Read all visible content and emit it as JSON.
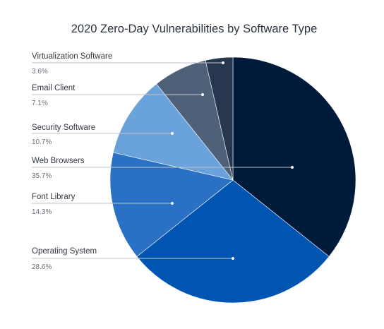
{
  "chart_data": {
    "type": "pie",
    "title": "2020 Zero-Day Vulnerabilities by Software Type",
    "start_angle_deg": 0,
    "direction": "clockwise",
    "slices": [
      {
        "label": "Web Browsers",
        "value": 35.7,
        "value_label": "35.7%",
        "color": "#001a3a"
      },
      {
        "label": "Operating System",
        "value": 28.6,
        "value_label": "28.6%",
        "color": "#0055b3"
      },
      {
        "label": "Font Library",
        "value": 14.3,
        "value_label": "14.3%",
        "color": "#2a71c5"
      },
      {
        "label": "Security Software",
        "value": 10.7,
        "value_label": "10.7%",
        "color": "#6aa2db"
      },
      {
        "label": "Email Client",
        "value": 7.1,
        "value_label": "7.1%",
        "color": "#4f6079"
      },
      {
        "label": "Virtualization Software",
        "value": 3.6,
        "value_label": "3.6%",
        "color": "#273750"
      }
    ],
    "legend": "left"
  }
}
